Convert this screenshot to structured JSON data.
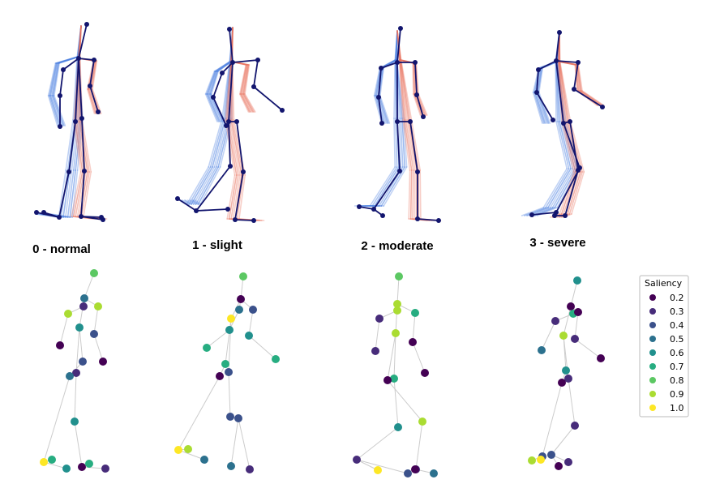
{
  "panels": [
    {
      "caption": "0 - normal"
    },
    {
      "caption": "1 - slight"
    },
    {
      "caption": "2 - moderate"
    },
    {
      "caption": "3 - severe"
    }
  ],
  "legend": {
    "title": "Saliency",
    "items": [
      {
        "label": "0.2",
        "color": "#440154"
      },
      {
        "label": "0.3",
        "color": "#472c7a"
      },
      {
        "label": "0.4",
        "color": "#3b518b"
      },
      {
        "label": "0.5",
        "color": "#2c718e"
      },
      {
        "label": "0.6",
        "color": "#21908d"
      },
      {
        "label": "0.7",
        "color": "#27ad81"
      },
      {
        "label": "0.8",
        "color": "#5cc863"
      },
      {
        "label": "0.9",
        "color": "#aadc32"
      },
      {
        "label": "1.0",
        "color": "#fde725"
      }
    ]
  },
  "colors": {
    "left_side": "#4a7fe0",
    "right_side": "#e8735f",
    "keyframe": "#12156e",
    "saliency_edge": "#cccccc"
  },
  "saliency_skeletons": [
    {
      "saliency": [
        0.8,
        0.5,
        0.3,
        0.9,
        0.2,
        0.9,
        0.4,
        0.2,
        0.6,
        0.4,
        0.3,
        0.5,
        0.6,
        1.0,
        0.7,
        0.6,
        0.2,
        0.7,
        0.3
      ]
    },
    {
      "saliency": [
        0.8,
        0.2,
        0.5,
        0.6,
        0.7,
        0.4,
        0.6,
        0.7,
        1.0,
        0.7,
        0.4,
        0.2,
        0.4,
        1.0,
        0.9,
        0.5,
        0.4,
        0.5,
        0.3
      ]
    },
    {
      "saliency": [
        0.8,
        0.9,
        0.9,
        0.3,
        0.3,
        0.7,
        0.2,
        0.2,
        0.9,
        0.7,
        0.2,
        0.6,
        0.9,
        0.3,
        1.0,
        0.4,
        0.3,
        0.5,
        0.2
      ]
    },
    {
      "saliency": [
        0.6,
        0.2,
        0.7,
        0.3,
        0.5,
        0.2,
        0.3,
        0.2,
        0.9,
        0.6,
        0.3,
        0.2,
        0.3,
        0.4,
        1.0,
        0.9,
        0.4,
        0.2,
        0.3
      ]
    }
  ]
}
